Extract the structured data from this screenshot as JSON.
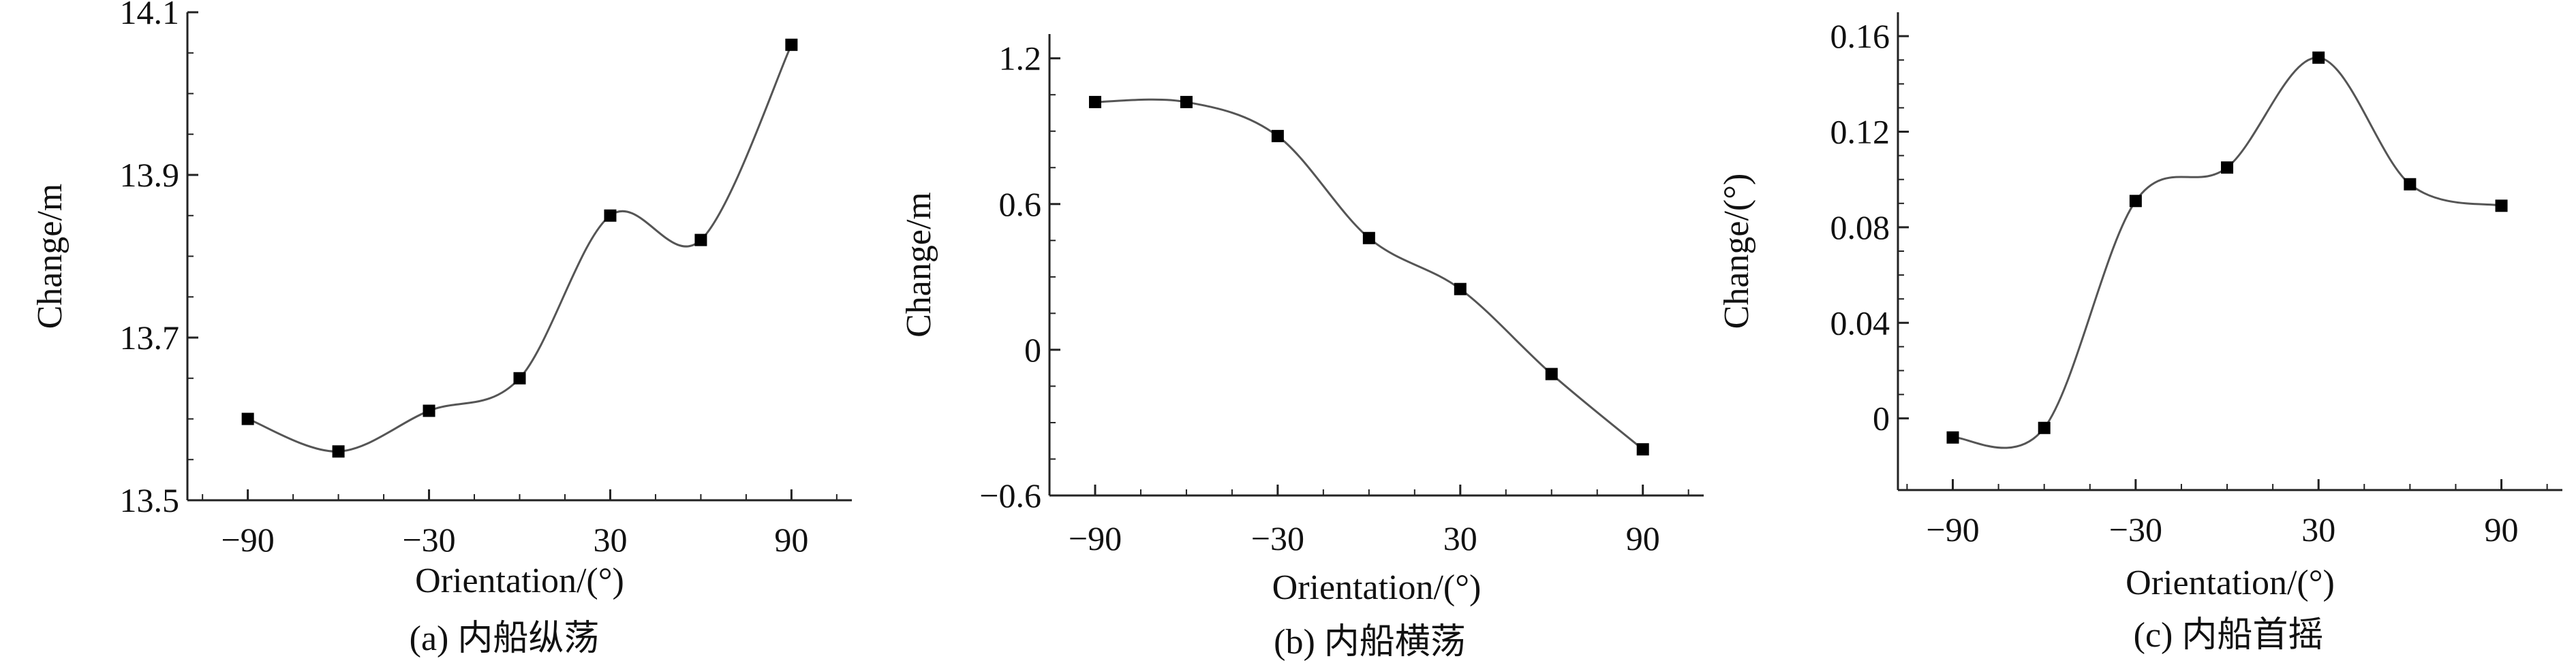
{
  "chart_data": [
    {
      "type": "line",
      "caption": "(a) 内船纵荡",
      "xlabel": "Orientation/(°)",
      "ylabel": "Change/m",
      "x": [
        -90,
        -60,
        -30,
        0,
        30,
        60,
        90
      ],
      "series": [
        {
          "values": [
            13.6,
            13.56,
            13.61,
            13.65,
            13.85,
            13.82,
            14.06
          ]
        }
      ],
      "xlim": [
        -110,
        110
      ],
      "ylim": [
        13.5,
        14.1
      ],
      "xticks": [
        -90,
        -30,
        30,
        90
      ],
      "xtick_labels": [
        "−90",
        "−30",
        "30",
        "90"
      ],
      "yticks": [
        13.5,
        13.7,
        13.9,
        14.1
      ],
      "ytick_labels": [
        "13.5",
        "13.7",
        "13.9",
        "14.1"
      ],
      "marker": "square",
      "line_color": "#555555",
      "marker_color": "#000000",
      "smooth": true,
      "grid": false
    },
    {
      "type": "line",
      "caption": "(b) 内船横荡",
      "xlabel": "Orientation/(°)",
      "ylabel": "Change/m",
      "x": [
        -90,
        -60,
        -30,
        0,
        30,
        60,
        90
      ],
      "series": [
        {
          "values": [
            1.02,
            1.02,
            0.88,
            0.46,
            0.25,
            -0.1,
            -0.41
          ]
        }
      ],
      "xlim": [
        -105,
        110
      ],
      "ylim": [
        -0.6,
        1.3
      ],
      "xticks": [
        -90,
        -30,
        30,
        90
      ],
      "xtick_labels": [
        "−90",
        "−30",
        "30",
        "90"
      ],
      "yticks": [
        -0.6,
        0,
        0.6,
        1.2
      ],
      "ytick_labels": [
        "−0.6",
        "0",
        "0.6",
        "1.2"
      ],
      "marker": "square",
      "line_color": "#555555",
      "marker_color": "#000000",
      "smooth": true,
      "grid": false
    },
    {
      "type": "line",
      "caption": "(c) 内船首摇",
      "xlabel": "Orientation/(°)",
      "ylabel": "Change/(°)",
      "x": [
        -90,
        -60,
        -30,
        0,
        30,
        60,
        90
      ],
      "series": [
        {
          "values": [
            -0.008,
            -0.004,
            0.091,
            0.105,
            0.151,
            0.098,
            0.089
          ]
        }
      ],
      "xlim": [
        -108,
        110
      ],
      "ylim": [
        -0.03,
        0.17
      ],
      "xticks": [
        -90,
        -30,
        30,
        90
      ],
      "xtick_labels": [
        "−90",
        "−30",
        "30",
        "90"
      ],
      "yticks": [
        0,
        0.04,
        0.08,
        0.12,
        0.16
      ],
      "ytick_labels": [
        "0",
        "0.04",
        "0.08",
        "0.12",
        "0.16"
      ],
      "marker": "square",
      "line_color": "#555555",
      "marker_color": "#000000",
      "smooth": true,
      "grid": false
    }
  ]
}
